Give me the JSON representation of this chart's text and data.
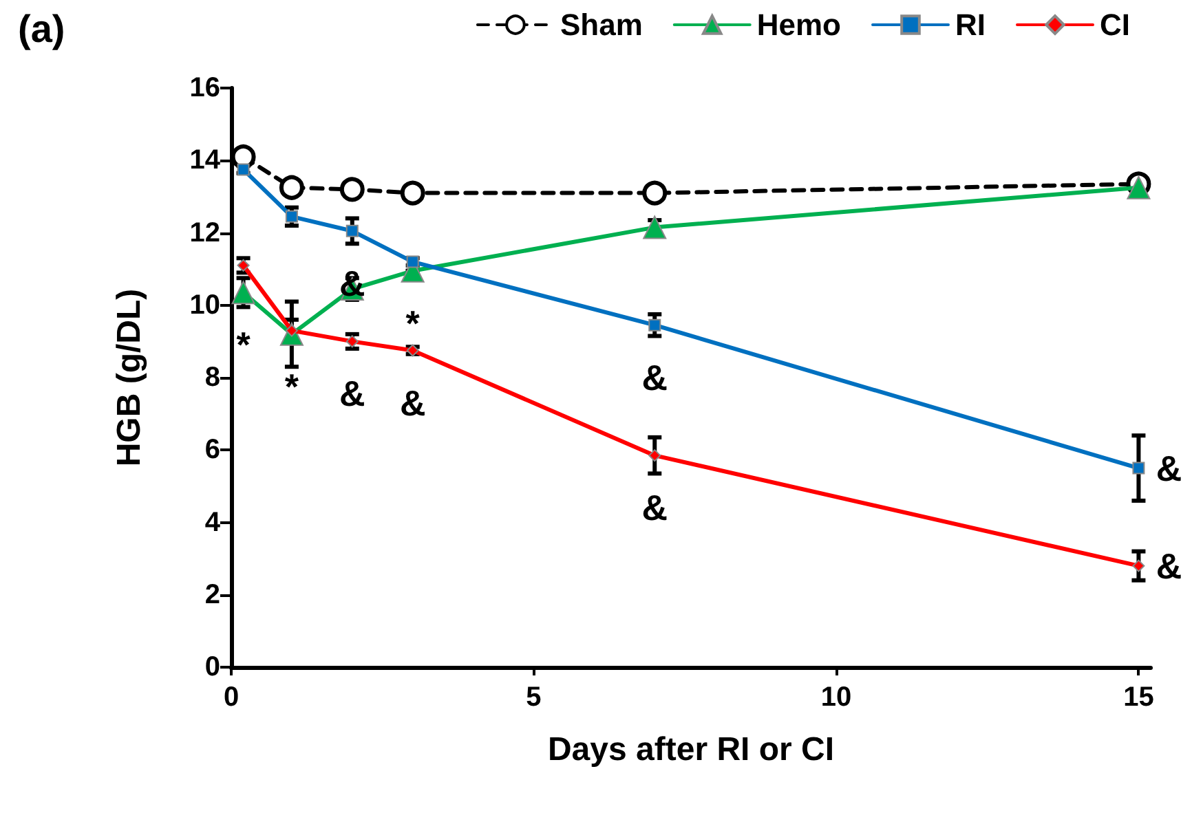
{
  "chart_data": {
    "type": "line",
    "title": "(a)",
    "xlabel": "Days after RI or CI",
    "ylabel": "HGB (g/DL)",
    "x": [
      0.2,
      1,
      2,
      3,
      7,
      15
    ],
    "series": [
      {
        "name": "Sham",
        "color": "#000000",
        "marker": "circle",
        "line_style": "dashed",
        "values": [
          14.1,
          13.25,
          13.2,
          13.1,
          13.1,
          13.35
        ]
      },
      {
        "name": "Hemo",
        "color": "#00b050",
        "marker": "triangle",
        "line_style": "solid",
        "values": [
          10.35,
          9.2,
          10.45,
          10.95,
          12.15,
          13.25
        ],
        "errors": [
          0.4,
          0.9,
          0.3,
          null,
          0.2,
          0.15
        ]
      },
      {
        "name": "RI",
        "color": "#0070c0",
        "marker": "square",
        "line_style": "solid",
        "values": [
          13.75,
          12.45,
          12.05,
          11.2,
          9.45,
          5.5
        ],
        "errors": [
          0.1,
          0.25,
          0.35,
          0.1,
          0.3,
          0.9
        ]
      },
      {
        "name": "CI",
        "color": "#ff0000",
        "marker": "diamond",
        "line_style": "solid",
        "values": [
          11.1,
          9.3,
          9.0,
          8.75,
          5.85,
          2.8
        ],
        "errors": [
          0.2,
          0.3,
          0.2,
          0.1,
          0.5,
          0.4
        ]
      }
    ],
    "xlim": [
      0,
      15.2
    ],
    "xticks": [
      0,
      5,
      10,
      15
    ],
    "ylim": [
      0,
      16
    ],
    "yticks": [
      0,
      2,
      4,
      6,
      8,
      10,
      12,
      14,
      16
    ],
    "grid": false,
    "legend": "top right",
    "annotations": [
      {
        "text": "*",
        "x": 0.2,
        "y": 10.35
      },
      {
        "text": "*",
        "x": 1,
        "y": 9.2
      },
      {
        "text": "&",
        "x": 2,
        "y": 12.05
      },
      {
        "text": "&",
        "x": 2,
        "y": 9.0
      },
      {
        "text": "*",
        "x": 3,
        "y": 10.95
      },
      {
        "text": "&",
        "x": 3,
        "y": 8.75
      },
      {
        "text": "&",
        "x": 7,
        "y": 9.45
      },
      {
        "text": "&",
        "x": 7,
        "y": 5.85
      },
      {
        "text": "&",
        "x": 15,
        "y": 5.5
      },
      {
        "text": "&",
        "x": 15,
        "y": 2.8
      }
    ]
  }
}
